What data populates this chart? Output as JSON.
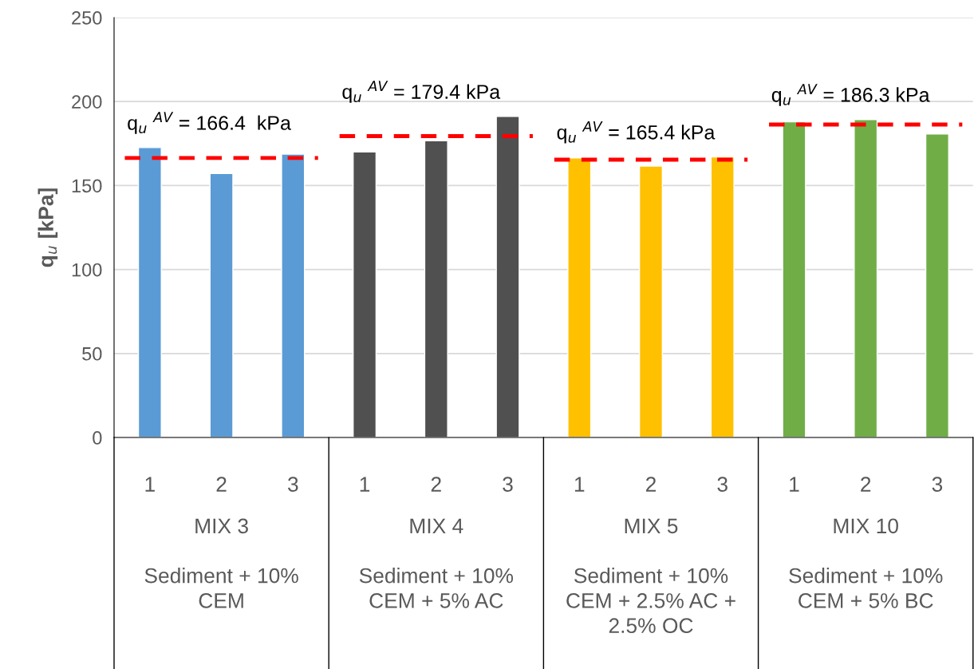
{
  "chart_data": {
    "type": "bar",
    "ylabel": "q$_{u}$ [kPa]",
    "categories": [
      "1",
      "2",
      "3",
      "1",
      "2",
      "3",
      "1",
      "2",
      "3",
      "1",
      "2",
      "3"
    ],
    "series": [
      {
        "color": "#5b9bd5",
        "values": [
          172.6,
          157.2,
          168.7,
          null,
          null,
          null,
          null,
          null,
          null,
          null,
          null,
          null
        ]
      },
      {
        "color": "#505050",
        "values": [
          null,
          null,
          null,
          170.0,
          176.7,
          191.1,
          null,
          null,
          null,
          null,
          null,
          null
        ]
      },
      {
        "color": "#ffc000",
        "values": [
          null,
          null,
          null,
          null,
          null,
          null,
          166.4,
          161.6,
          167.0,
          null,
          null,
          null
        ]
      },
      {
        "color": "#70ad47",
        "values": [
          null,
          null,
          null,
          null,
          null,
          null,
          null,
          null,
          null,
          188.0,
          189.3,
          180.7
        ]
      }
    ],
    "ref_lines": [
      {
        "axis": "y",
        "value": 166.4,
        "label": "q$_{u}$ $^{AV}$ = 166.4  kPa",
        "color": "#ff0000",
        "line_style": "dashed"
      },
      {
        "axis": "y",
        "value": 179.4,
        "label": "q$_{u}$ $^{AV}$ = 179.4 kPa",
        "color": "#ff0000",
        "line_style": "dashed"
      },
      {
        "axis": "y",
        "value": 165.4,
        "label": "q$_{u}$ $^{AV}$ = 165.4 kPa",
        "color": "#ff0000",
        "line_style": "dashed"
      },
      {
        "axis": "y",
        "value": 186.3,
        "label": "q$_{u}$ $^{AV}$ = 186.3 kPa",
        "color": "#ff0000",
        "line_style": "dashed"
      }
    ],
    "annotations": [
      "MIX 3",
      "Sediment + 10%\nCEM",
      "MIX 4",
      "Sediment + 10%\nCEM + 5% AC",
      "MIX 5",
      "Sediment + 10%\nCEM + 2.5% AC +\n2.5% OC",
      "MIX 10",
      "Sediment + 10%\nCEM + 5% BC"
    ],
    "ylim": [
      0,
      250
    ],
    "yticks": [
      0,
      50,
      100,
      150,
      200,
      250
    ],
    "grid": "y"
  }
}
